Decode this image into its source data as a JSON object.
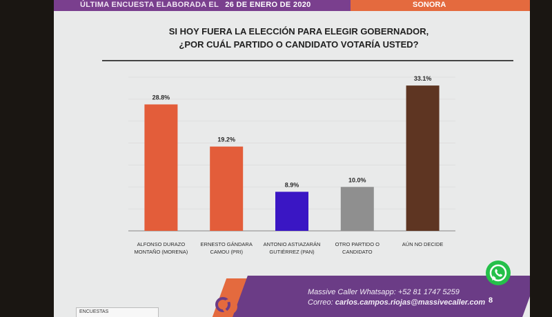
{
  "header": {
    "left_text": "ÚLTIMA ENCUESTA ELABORADA EL",
    "date": "26 DE ENERO DE 2020",
    "right_text": "SONORA"
  },
  "title_line1": "SI HOY FUERA LA ELECCIÓN PARA ELEGIR GOBERNADOR,",
  "title_line2": "¿POR CUÁL PARTIDO O CANDIDATO VOTARÍA USTED?",
  "chart_data": {
    "type": "bar",
    "categories": [
      [
        "ALFONSO DURAZO",
        "MONTAÑO (MORENA)"
      ],
      [
        "ERNESTO GÁNDARA",
        "CAMOU (PRI)"
      ],
      [
        "ANTONIO ASTIAZARÁN",
        "GUTIÉRREZ (PAN)"
      ],
      [
        "OTRO PARTIDO O",
        "CANDIDATO"
      ],
      [
        "AÚN NO DECIDE"
      ]
    ],
    "values": [
      28.8,
      19.2,
      8.9,
      10.0,
      33.1
    ],
    "value_labels": [
      "28.8%",
      "19.2%",
      "8.9%",
      "10.0%",
      "33.1%"
    ],
    "colors": [
      "#e35d3a",
      "#e35d3a",
      "#3a16c4",
      "#8f8f8f",
      "#5e3522"
    ],
    "ylim": [
      0,
      35
    ],
    "grid": true,
    "legend": "none"
  },
  "footer": {
    "whatsapp_label": "Massive Caller Whatsapp:",
    "whatsapp_number": "+52 81 1747 5259",
    "email_label": "Correo:",
    "email": "carlos.campos.riojas@massivecaller.com",
    "page_number": "8",
    "box_label": "ENCUESTAS"
  },
  "colors": {
    "purple": "#7a3f8e",
    "orange": "#e46a3e",
    "whatsapp_green": "#25c04a"
  }
}
